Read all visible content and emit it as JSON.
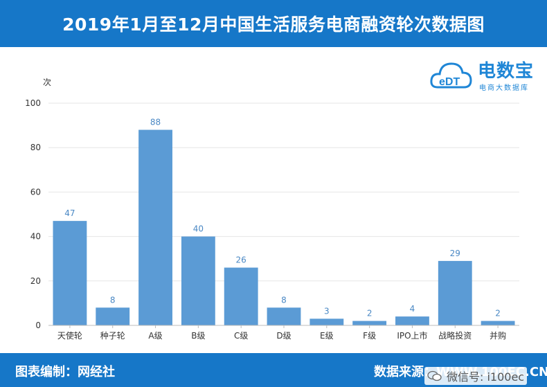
{
  "header": {
    "title": "2019年1月至12月中国生活服务电商融资轮次数据图"
  },
  "footer": {
    "left_text": "图表编制：网经社",
    "right_text": "数据来源：WWW.100EC.CN"
  },
  "watermark": {
    "text": "微信号: i100ec",
    "icon": "wechat-icon"
  },
  "logo": {
    "brand": "电数宝",
    "subtitle": "电商大数据库",
    "mark_text": "eDT"
  },
  "colors": {
    "header": "#1677c8",
    "bar": "#5b9bd5",
    "label": "#4a88c4",
    "grid": "#e6e6e6"
  },
  "chart_data": {
    "type": "bar",
    "title": "2019年1月至12月中国生活服务电商融资轮次数据图",
    "xlabel": "",
    "ylabel": "次",
    "ylim": [
      0,
      100
    ],
    "yticks": [
      0,
      20,
      40,
      60,
      80,
      100
    ],
    "grid": true,
    "categories": [
      "天使轮",
      "种子轮",
      "A级",
      "B级",
      "C级",
      "D级",
      "E级",
      "F级",
      "IPO上市",
      "战略投资",
      "并购"
    ],
    "values": [
      47,
      8,
      88,
      40,
      26,
      8,
      3,
      2,
      4,
      29,
      2
    ]
  }
}
